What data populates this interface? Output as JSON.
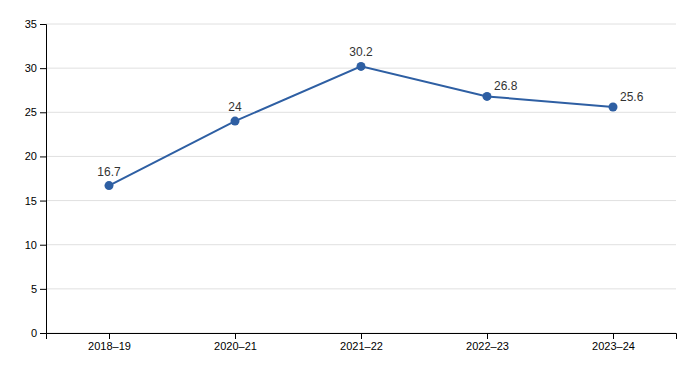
{
  "chart_data": {
    "type": "line",
    "categories": [
      "2018–19",
      "2020–21",
      "2021–22",
      "2022–23",
      "2023–24"
    ],
    "values": [
      16.7,
      24.0,
      30.2,
      26.8,
      25.6
    ],
    "color": "#2e5fa3",
    "marker": "circle",
    "ylim": [
      0,
      35
    ],
    "yticks": [
      0,
      5,
      10,
      15,
      20,
      25,
      30,
      35
    ],
    "grid": true,
    "data_labels": true
  }
}
